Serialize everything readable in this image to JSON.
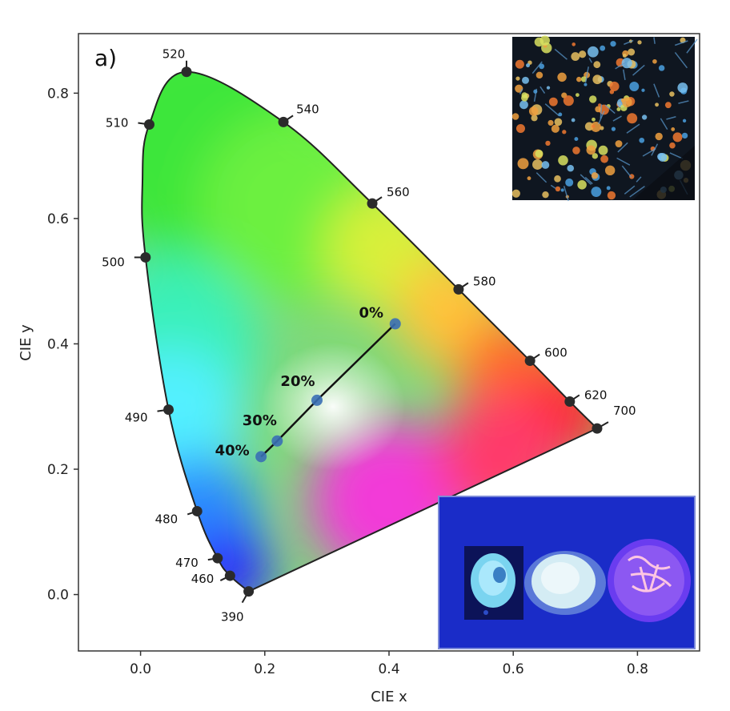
{
  "chart_data": {
    "type": "scatter",
    "panel_label": "a)",
    "xlabel": "CIE x",
    "ylabel": "CIE y",
    "xlim": [
      -0.1,
      0.9
    ],
    "ylim": [
      -0.09,
      0.895
    ],
    "xticks": [
      "0.0",
      "0.2",
      "0.4",
      "0.6",
      "0.8"
    ],
    "xtick_values": [
      0.0,
      0.2,
      0.4,
      0.6,
      0.8
    ],
    "yticks": [
      "0.0",
      "0.2",
      "0.4",
      "0.6",
      "0.8"
    ],
    "ytick_values": [
      0.0,
      0.2,
      0.4,
      0.6,
      0.8
    ],
    "spectral_locus": [
      {
        "label": "390",
        "x": 0.174,
        "y": 0.005
      },
      {
        "label": "460",
        "x": 0.144,
        "y": 0.03
      },
      {
        "label": "470",
        "x": 0.124,
        "y": 0.058
      },
      {
        "label": "480",
        "x": 0.091,
        "y": 0.133
      },
      {
        "label": "490",
        "x": 0.045,
        "y": 0.295
      },
      {
        "label": "500",
        "x": 0.008,
        "y": 0.538
      },
      {
        "label": "510",
        "x": 0.014,
        "y": 0.75
      },
      {
        "label": "520",
        "x": 0.074,
        "y": 0.834
      },
      {
        "label": "540",
        "x": 0.23,
        "y": 0.754
      },
      {
        "label": "560",
        "x": 0.373,
        "y": 0.624
      },
      {
        "label": "580",
        "x": 0.512,
        "y": 0.487
      },
      {
        "label": "600",
        "x": 0.627,
        "y": 0.373
      },
      {
        "label": "620",
        "x": 0.691,
        "y": 0.308
      },
      {
        "label": "700",
        "x": 0.735,
        "y": 0.265
      }
    ],
    "series": [
      {
        "points": [
          {
            "label": "0%",
            "x": 0.41,
            "y": 0.432
          },
          {
            "label": "20%",
            "x": 0.284,
            "y": 0.31
          },
          {
            "label": "30%",
            "x": 0.22,
            "y": 0.245
          },
          {
            "label": "40%",
            "x": 0.194,
            "y": 0.22
          }
        ]
      }
    ],
    "insets": [
      "microscope-photo-top-right",
      "uv-photo-bottom-right"
    ],
    "colors": {
      "locus_outline": "#222222",
      "marker": "#3a6fb5",
      "line": "#111111"
    }
  }
}
